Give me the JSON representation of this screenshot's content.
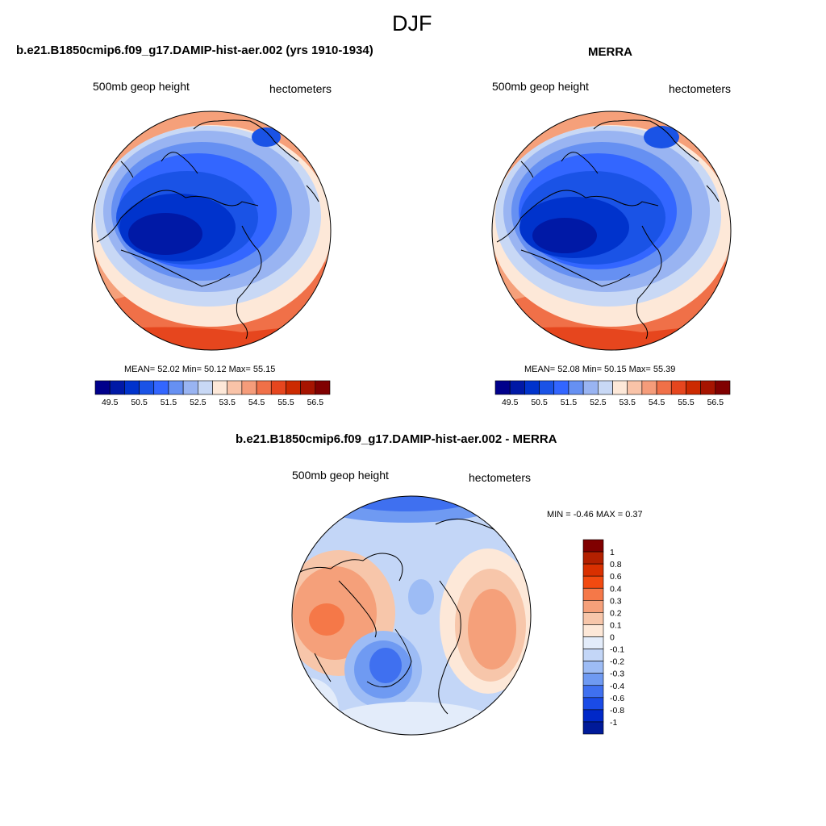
{
  "figure": {
    "season": "DJF"
  },
  "panel_model": {
    "title": "b.e21.B1850cmip6.f09_g17.DAMIP-hist-aer.002 (yrs 1910-1934)",
    "variable": "500mb geop height",
    "units": "hectometers",
    "stats": "MEAN=  52.02  Min=  50.12  Max=  55.15",
    "mean": 52.02,
    "min": 50.12,
    "max": 55.15
  },
  "panel_obs": {
    "title": "MERRA",
    "variable": "500mb geop height",
    "units": "hectometers",
    "stats": "MEAN=  52.08  Min=  50.15  Max=  55.39",
    "mean": 52.08,
    "min": 50.15,
    "max": 55.39
  },
  "panel_diff": {
    "title": "b.e21.B1850cmip6.f09_g17.DAMIP-hist-aer.002 - MERRA",
    "variable": "500mb geop height",
    "units": "hectometers",
    "stats": "MIN =  -0.46 MAX =   0.37",
    "min": -0.46,
    "max": 0.37
  },
  "colorbar_abs": {
    "orientation": "horizontal",
    "tick_labels": [
      "49.5",
      "50.5",
      "51.5",
      "52.5",
      "53.5",
      "54.5",
      "55.5",
      "56.5"
    ],
    "colors": [
      "#00008b",
      "#0019a6",
      "#0033cc",
      "#1a53e6",
      "#3366ff",
      "#6690f2",
      "#99b4f2",
      "#c8d8f5",
      "#fde8d8",
      "#f9c3a8",
      "#f59c7a",
      "#f07048",
      "#e6461e",
      "#cc2a00",
      "#a61400",
      "#800000"
    ]
  },
  "colorbar_diff": {
    "orientation": "vertical",
    "tick_labels": [
      "1",
      "0.8",
      "0.6",
      "0.4",
      "0.3",
      "0.2",
      "0.1",
      "0",
      "-0.1",
      "-0.2",
      "-0.3",
      "-0.4",
      "-0.6",
      "-0.8",
      "-1"
    ],
    "colors": [
      "#800000",
      "#b32000",
      "#d93000",
      "#f24a10",
      "#f57848",
      "#f5a07a",
      "#f7c6aa",
      "#fde8d8",
      "#e3ecfa",
      "#c3d6f7",
      "#9dbcf5",
      "#6f9af2",
      "#3f70f0",
      "#1a4be6",
      "#0028c8",
      "#001a99"
    ]
  }
}
